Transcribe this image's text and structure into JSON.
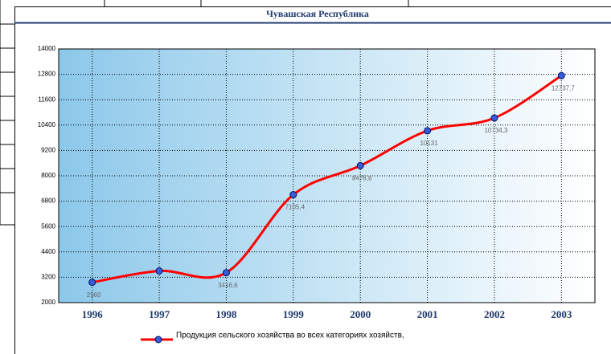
{
  "chart_data": {
    "type": "line",
    "title": "Чувашская Республика",
    "categories": [
      "1996",
      "1997",
      "1998",
      "1999",
      "2000",
      "2001",
      "2002",
      "2003"
    ],
    "series": [
      {
        "name": "Продукция сельского хозяйства во всех категориях хозяйств,",
        "color": "#ff0000",
        "values": [
          2960,
          3500,
          3416.6,
          7105.4,
          8478.6,
          10131,
          10734.3,
          12737.7
        ],
        "value_labels": [
          "2960",
          null,
          "3416,6",
          "7105,4",
          "8478,6",
          "10131",
          "10734,3",
          "12737,7"
        ]
      }
    ],
    "ylim": [
      2000,
      14000
    ],
    "yticks": [
      2000,
      3200,
      4400,
      5600,
      6800,
      8000,
      9200,
      10400,
      11600,
      12800,
      14000
    ],
    "grid": true
  }
}
